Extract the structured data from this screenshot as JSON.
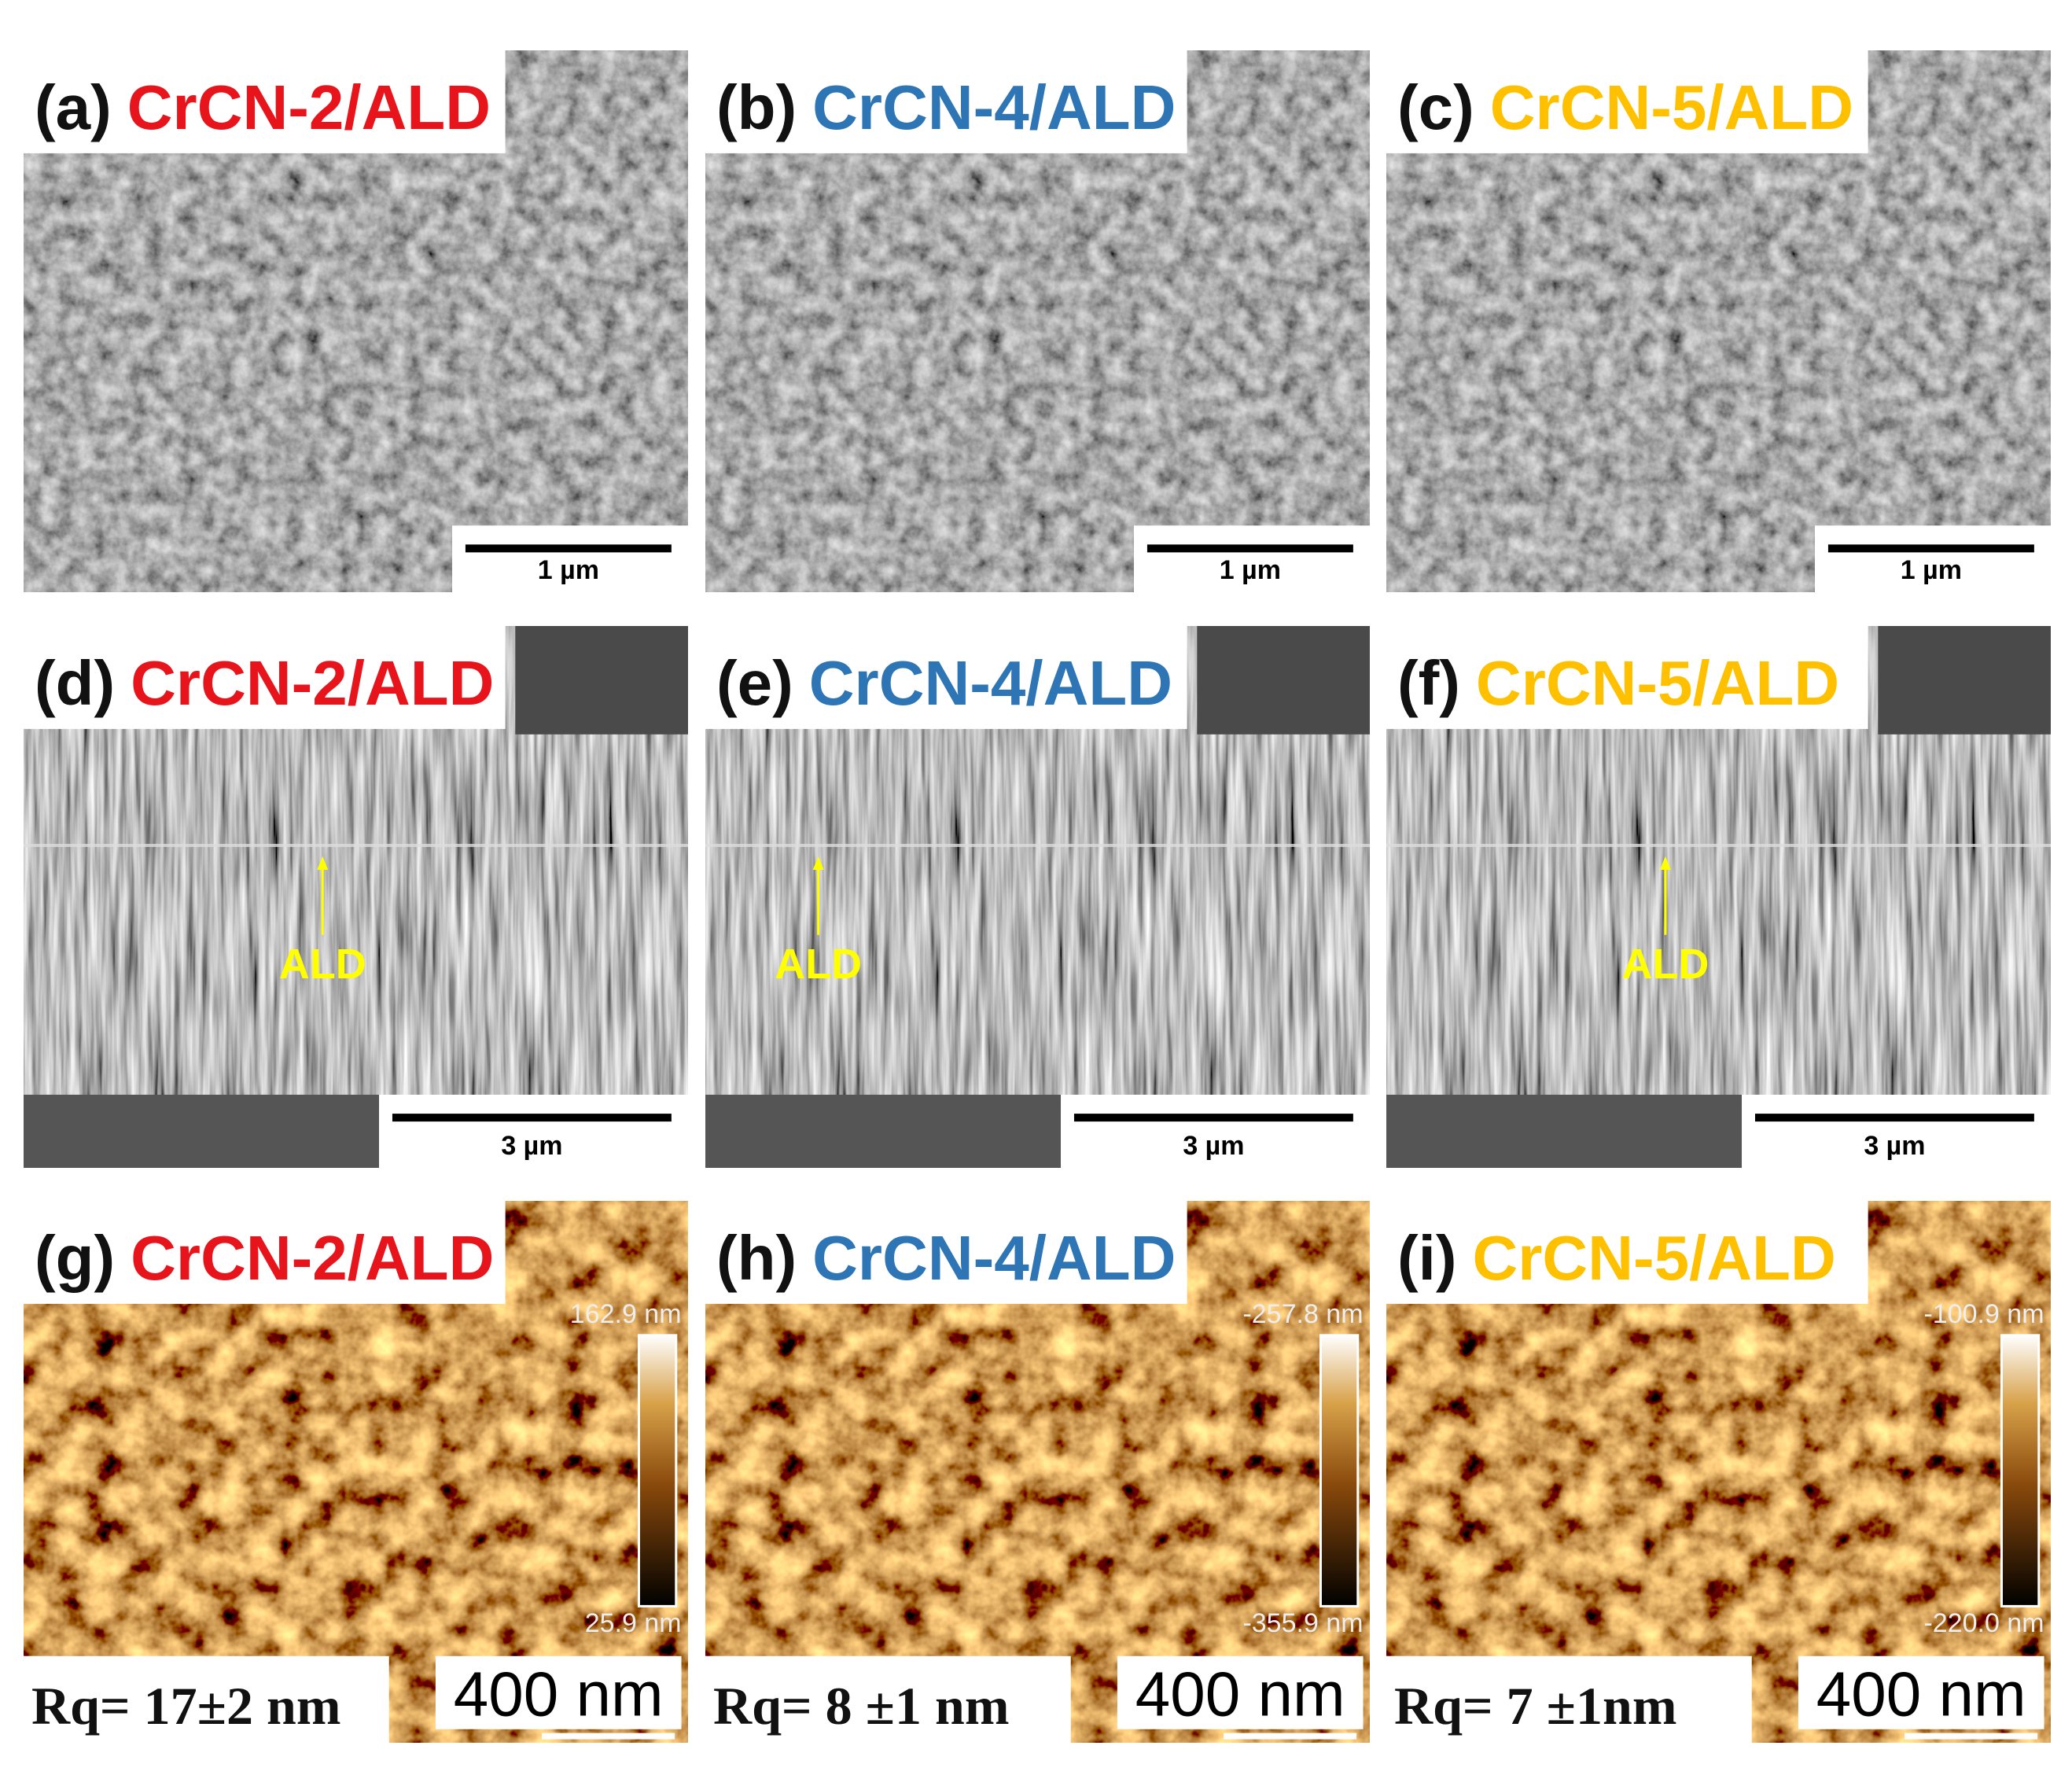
{
  "panels": [
    {
      "label": "(a)",
      "sample": "CrCN-2/ALD",
      "sample_color": "#e8141b",
      "scale_bar": "1 µm"
    },
    {
      "label": "(b)",
      "sample": "CrCN-4/ALD",
      "sample_color": "#2e75b6",
      "scale_bar": "1 µm"
    },
    {
      "label": "(c)",
      "sample": "CrCN-5/ALD",
      "sample_color": "#ffc000",
      "scale_bar": "1 µm"
    },
    {
      "label": "(d)",
      "sample": "CrCN-2/ALD",
      "sample_color": "#e8141b",
      "scale_bar": "3 µm",
      "marker": "ALD"
    },
    {
      "label": "(e)",
      "sample": "CrCN-4/ALD",
      "sample_color": "#2e75b6",
      "scale_bar": "3 µm",
      "marker": "ALD"
    },
    {
      "label": "(f)",
      "sample": "CrCN-5/ALD",
      "sample_color": "#ffc000",
      "scale_bar": "3 µm",
      "marker": "ALD"
    },
    {
      "label": "(g)",
      "sample": "CrCN-2/ALD",
      "sample_color": "#e8141b",
      "scale_bar": "400 nm",
      "colorbar_max": "162.9 nm",
      "colorbar_min": "25.9 nm",
      "roughness": "Rq= 17±2 nm"
    },
    {
      "label": "(h)",
      "sample": "CrCN-4/ALD",
      "sample_color": "#2e75b6",
      "scale_bar": "400 nm",
      "colorbar_max": "-257.8 nm",
      "colorbar_min": "-355.9 nm",
      "roughness": "Rq= 8 ±1 nm"
    },
    {
      "label": "(i)",
      "sample": "CrCN-5/ALD",
      "sample_color": "#ffc000",
      "scale_bar": "400 nm",
      "colorbar_max": "-100.9 nm",
      "colorbar_min": "-220.0 nm",
      "roughness": "Rq= 7 ±1nm"
    }
  ]
}
